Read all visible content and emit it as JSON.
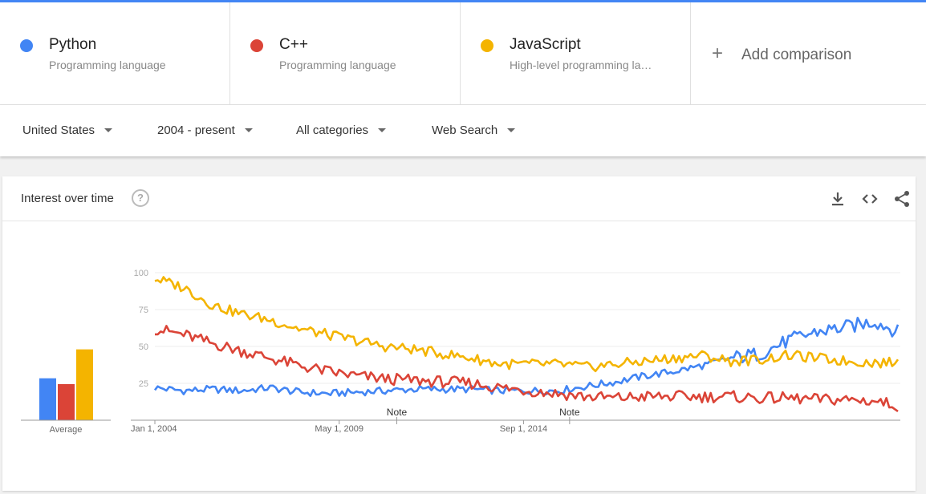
{
  "terms": [
    {
      "name": "Python",
      "type": "Programming language",
      "color": "#4285f4"
    },
    {
      "name": "C++",
      "type": "Programming language",
      "color": "#db4437"
    },
    {
      "name": "JavaScript",
      "type": "High-level programming la…",
      "color": "#f4b400"
    }
  ],
  "add_comparison": "Add comparison",
  "filters": {
    "region": "United States",
    "time": "2004 - present",
    "category": "All categories",
    "search_type": "Web Search"
  },
  "card": {
    "title": "Interest over time",
    "help": "?"
  },
  "chart_data": {
    "type": "line",
    "x_labels": [
      "Jan 1, 2004",
      "May 1, 2009",
      "Sep 1, 2014"
    ],
    "y_ticks": [
      25,
      50,
      75,
      100
    ],
    "ylim": [
      0,
      100
    ],
    "notes": [
      "Note",
      "Note"
    ],
    "average_label": "Average",
    "averages": [
      {
        "name": "Python",
        "value": 29
      },
      {
        "name": "C++",
        "value": 25
      },
      {
        "name": "JavaScript",
        "value": 49
      }
    ],
    "series": [
      {
        "name": "Python",
        "keypoints": [
          [
            0,
            22
          ],
          [
            10,
            20
          ],
          [
            20,
            21
          ],
          [
            30,
            20
          ],
          [
            40,
            22
          ],
          [
            50,
            19
          ],
          [
            60,
            18
          ],
          [
            70,
            19
          ],
          [
            80,
            20
          ],
          [
            90,
            21
          ],
          [
            100,
            21
          ],
          [
            110,
            21
          ],
          [
            120,
            20
          ],
          [
            130,
            20
          ],
          [
            140,
            20
          ],
          [
            150,
            23
          ],
          [
            160,
            26
          ],
          [
            170,
            30
          ],
          [
            180,
            33
          ],
          [
            190,
            37
          ],
          [
            200,
            42
          ],
          [
            210,
            45
          ],
          [
            220,
            54
          ],
          [
            230,
            60
          ],
          [
            240,
            63
          ],
          [
            250,
            67
          ],
          [
            258,
            60
          ]
        ]
      },
      {
        "name": "C++",
        "keypoints": [
          [
            0,
            62
          ],
          [
            10,
            58
          ],
          [
            20,
            52
          ],
          [
            30,
            47
          ],
          [
            40,
            42
          ],
          [
            50,
            37
          ],
          [
            60,
            33
          ],
          [
            70,
            30
          ],
          [
            80,
            28
          ],
          [
            90,
            27
          ],
          [
            100,
            26
          ],
          [
            110,
            25
          ],
          [
            120,
            22
          ],
          [
            130,
            20
          ],
          [
            140,
            18
          ],
          [
            150,
            16
          ],
          [
            160,
            15
          ],
          [
            170,
            16
          ],
          [
            180,
            16
          ],
          [
            190,
            16
          ],
          [
            200,
            16
          ],
          [
            210,
            15
          ],
          [
            220,
            15
          ],
          [
            230,
            14
          ],
          [
            240,
            14
          ],
          [
            250,
            13
          ],
          [
            258,
            10
          ]
        ]
      },
      {
        "name": "JavaScript",
        "keypoints": [
          [
            0,
            96
          ],
          [
            10,
            90
          ],
          [
            20,
            78
          ],
          [
            30,
            72
          ],
          [
            40,
            68
          ],
          [
            50,
            62
          ],
          [
            60,
            58
          ],
          [
            70,
            54
          ],
          [
            80,
            50
          ],
          [
            90,
            48
          ],
          [
            100,
            45
          ],
          [
            110,
            42
          ],
          [
            120,
            38
          ],
          [
            130,
            38
          ],
          [
            140,
            38
          ],
          [
            150,
            36
          ],
          [
            160,
            38
          ],
          [
            170,
            40
          ],
          [
            180,
            42
          ],
          [
            190,
            44
          ],
          [
            200,
            40
          ],
          [
            210,
            41
          ],
          [
            220,
            44
          ],
          [
            230,
            42
          ],
          [
            240,
            40
          ],
          [
            250,
            39
          ],
          [
            258,
            39
          ]
        ]
      }
    ]
  }
}
